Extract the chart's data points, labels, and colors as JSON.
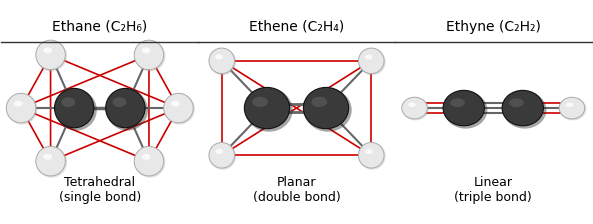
{
  "title_ethane": "Ethane (C₂H₆)",
  "title_ethene": "Ethene (C₂H₄)",
  "title_ethyne": "Ethyne (C₂H₂)",
  "label_ethane": "Tetrahedral\n(single bond)",
  "label_ethene": "Planar\n(double bond)",
  "label_ethyne": "Linear\n(triple bond)",
  "bg_color": "#ffffff",
  "border_color": "#333333",
  "carbon_color_dark": "#3a3a3a",
  "hydrogen_color": "#e8e8e8",
  "hydrogen_edge": "#aaaaaa",
  "red_line_color": "#cc0000",
  "bond_color": "#666666",
  "title_fontsize": 10,
  "label_fontsize": 9
}
